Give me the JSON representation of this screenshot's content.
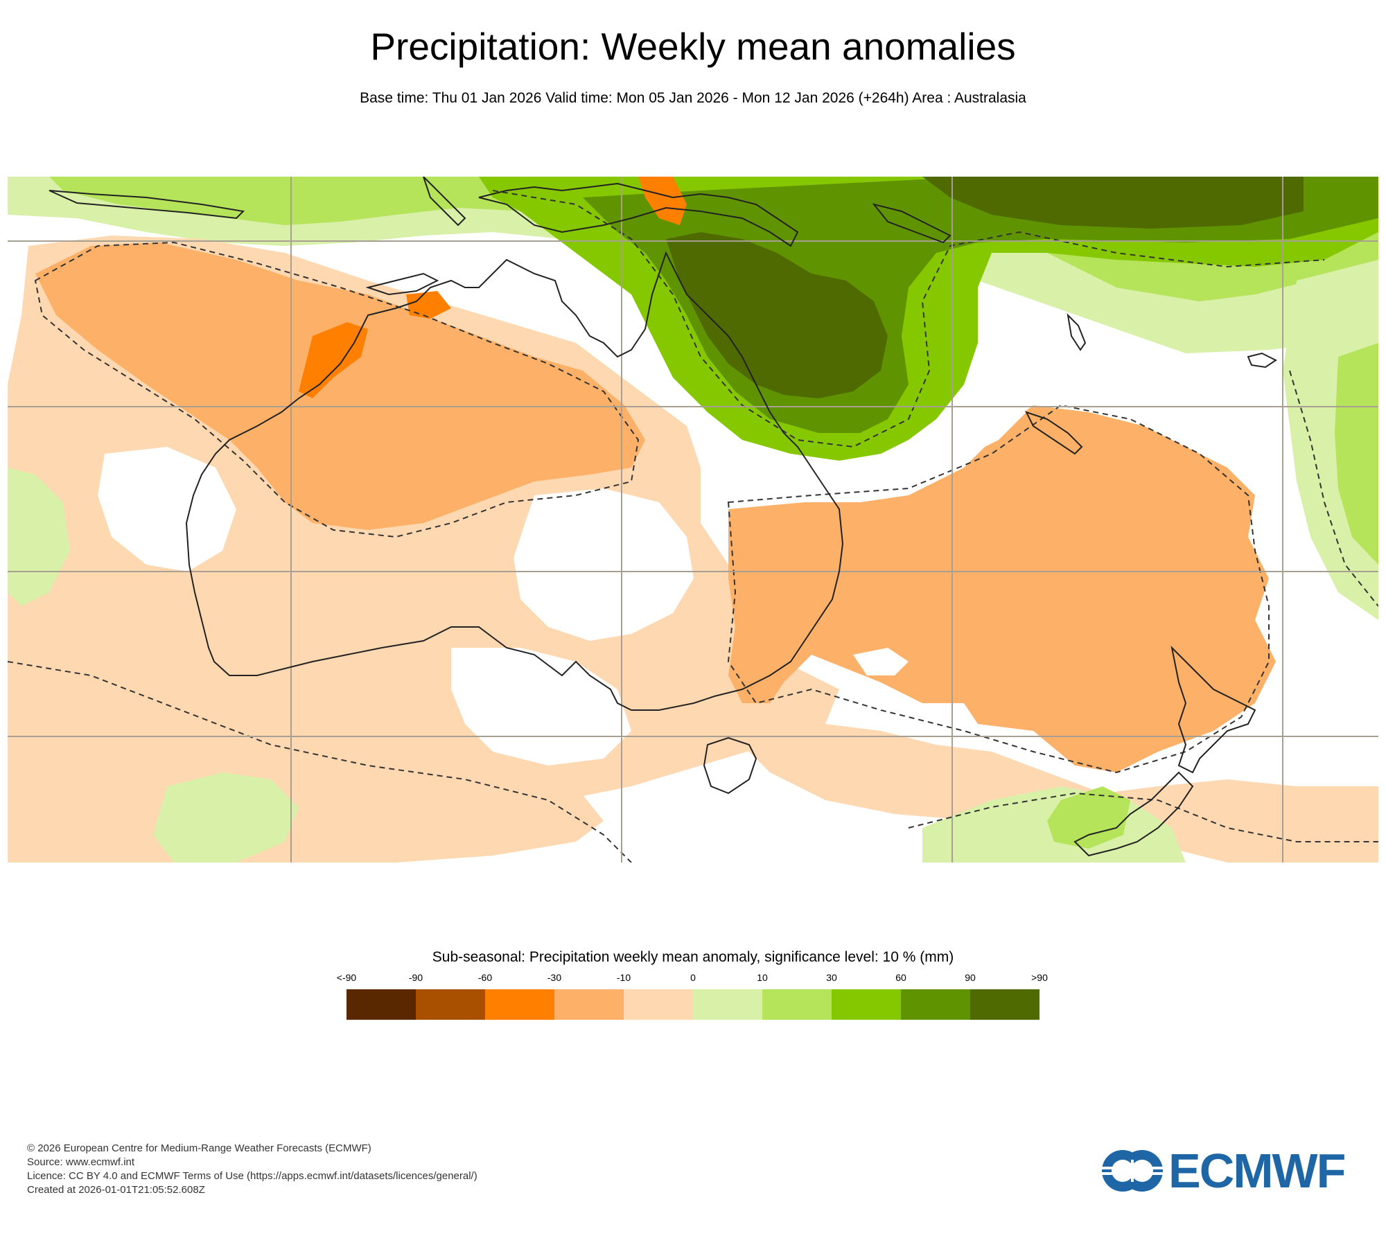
{
  "header": {
    "title": "Precipitation: Weekly mean anomalies",
    "subtitle": "Base time: Thu 01 Jan 2026 Valid time: Mon 05 Jan 2026 - Mon 12 Jan 2026 (+264h) Area : Australasia"
  },
  "map": {
    "region": "Australasia",
    "colors": {
      "lt_neg90": "#5a2800",
      "neg90_neg60": "#a85000",
      "neg60_neg30": "#ff7f00",
      "neg30_neg10": "#fdb067",
      "neg10_0": "#fdd8b0",
      "p0_10": "#d8f0a8",
      "p10_30": "#b5e35a",
      "p30_60": "#86c800",
      "p60_90": "#5f9400",
      "gt_90": "#4e6a00",
      "coastline": "#222222",
      "graticule": "#a89f93"
    }
  },
  "legend": {
    "title": "Sub-seasonal: Precipitation weekly mean anomaly, significance level: 10 % (mm)",
    "ticks": [
      "<-90",
      "-90",
      "-60",
      "-30",
      "-10",
      "0",
      "10",
      "30",
      "60",
      "90",
      ">90"
    ],
    "colors": [
      "#5a2800",
      "#a85000",
      "#ff7f00",
      "#fdb067",
      "#fdd8b0",
      "#d8f0a8",
      "#b5e35a",
      "#86c800",
      "#5f9400",
      "#4e6a00"
    ]
  },
  "footer": {
    "lines": [
      "© 2026 European Centre for Medium-Range Weather Forecasts (ECMWF)",
      "Source: www.ecmwf.int",
      "Licence: CC BY 4.0 and ECMWF Terms of Use (https://apps.ecmwf.int/datasets/licences/general/)",
      "Created at 2026-01-01T21:05:52.608Z"
    ]
  },
  "logo": {
    "text": "ECMWF",
    "color": "#1f66a6"
  }
}
